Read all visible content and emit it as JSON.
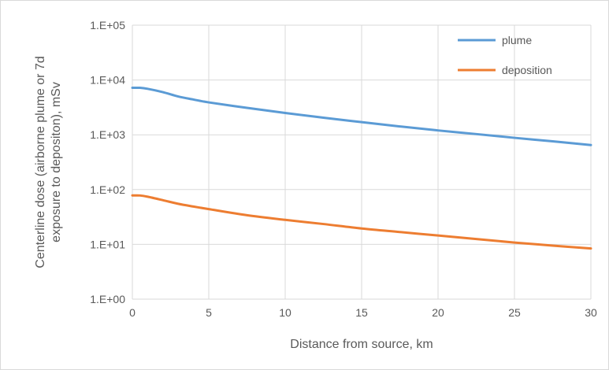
{
  "chart_data": {
    "type": "line",
    "title": "",
    "xlabel": "Distance from source, km",
    "ylabel_lines": [
      "Centerline dose (airborne plume or 7d",
      "exposure to depositon), mSv"
    ],
    "xlim": [
      0,
      30
    ],
    "ylim": [
      1,
      100000
    ],
    "y_scale": "log",
    "grid": true,
    "legend_position": "top-right",
    "x_ticks": [
      "0",
      "5",
      "10",
      "15",
      "20",
      "25",
      "30"
    ],
    "x_tick_values": [
      0,
      5,
      10,
      15,
      20,
      25,
      30
    ],
    "y_ticks": [
      "1.E+00",
      "1.E+01",
      "1.E+02",
      "1.E+03",
      "1.E+04",
      "1.E+05"
    ],
    "y_tick_values": [
      1,
      10,
      100,
      1000,
      10000,
      100000
    ],
    "series": [
      {
        "name": "plume",
        "color": "#5b9bd5",
        "x": [
          0,
          0.5,
          1,
          2,
          3,
          4,
          5,
          7.5,
          10,
          12.5,
          15,
          17.5,
          20,
          22.5,
          25,
          27.5,
          30
        ],
        "y": [
          7200,
          7200,
          6900,
          6000,
          5000,
          4400,
          3900,
          3100,
          2500,
          2050,
          1700,
          1420,
          1200,
          1030,
          880,
          760,
          650
        ]
      },
      {
        "name": "deposition",
        "color": "#ed7d31",
        "x": [
          0,
          0.5,
          1,
          2,
          3,
          4,
          5,
          7.5,
          10,
          12.5,
          15,
          17.5,
          20,
          22.5,
          25,
          27.5,
          30
        ],
        "y": [
          78,
          78,
          74,
          64,
          55,
          49,
          44,
          34,
          28,
          23.5,
          19.5,
          16.8,
          14.5,
          12.5,
          10.8,
          9.5,
          8.4
        ]
      }
    ]
  }
}
